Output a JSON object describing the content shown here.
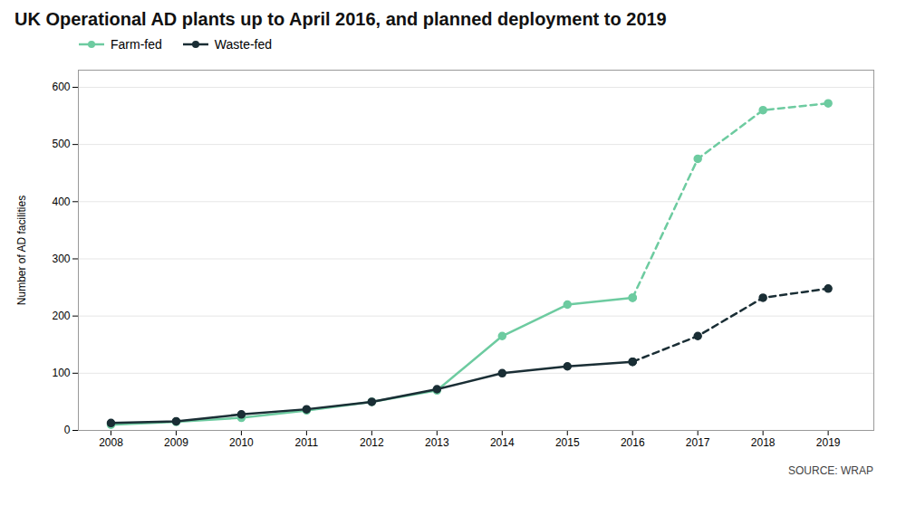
{
  "chart_data": {
    "type": "line",
    "title": "UK Operational AD plants up to April 2016, and planned deployment to 2019",
    "ylabel": "Number of AD facilities",
    "source": "SOURCE: WRAP",
    "x": [
      2008,
      2009,
      2010,
      2011,
      2012,
      2013,
      2014,
      2015,
      2016,
      2017,
      2018,
      2019
    ],
    "series": [
      {
        "name": "Farm-fed",
        "color": "#6dcba0",
        "line_style": "solid",
        "marker": "circle",
        "values": [
          10,
          15,
          22,
          35,
          50,
          70,
          165,
          220,
          232,
          null,
          null,
          null
        ]
      },
      {
        "name": "Waste-fed",
        "color": "#1a2e35",
        "line_style": "solid",
        "marker": "circle",
        "values": [
          13,
          16,
          28,
          37,
          50,
          72,
          100,
          112,
          120,
          null,
          null,
          null
        ]
      },
      {
        "name": "Farm-fed",
        "color": "#6dcba0",
        "line_style": "dashed",
        "marker": "circle",
        "values": [
          null,
          null,
          null,
          null,
          null,
          null,
          null,
          null,
          232,
          475,
          560,
          572
        ]
      },
      {
        "name": "Waste-fed",
        "color": "#1a2e35",
        "line_style": "dashed",
        "marker": "circle",
        "values": [
          null,
          null,
          null,
          null,
          null,
          null,
          null,
          null,
          120,
          165,
          232,
          248
        ]
      }
    ],
    "xlim": [
      2007.5,
      2019.7
    ],
    "xticks": [
      2008,
      2009,
      2010,
      2011,
      2012,
      2013,
      2014,
      2015,
      2016,
      2017,
      2018,
      2019
    ],
    "ylim": [
      0,
      630
    ],
    "yticks": [
      0,
      100,
      200,
      300,
      400,
      500,
      600
    ],
    "grid": true,
    "legend": "upper left"
  }
}
